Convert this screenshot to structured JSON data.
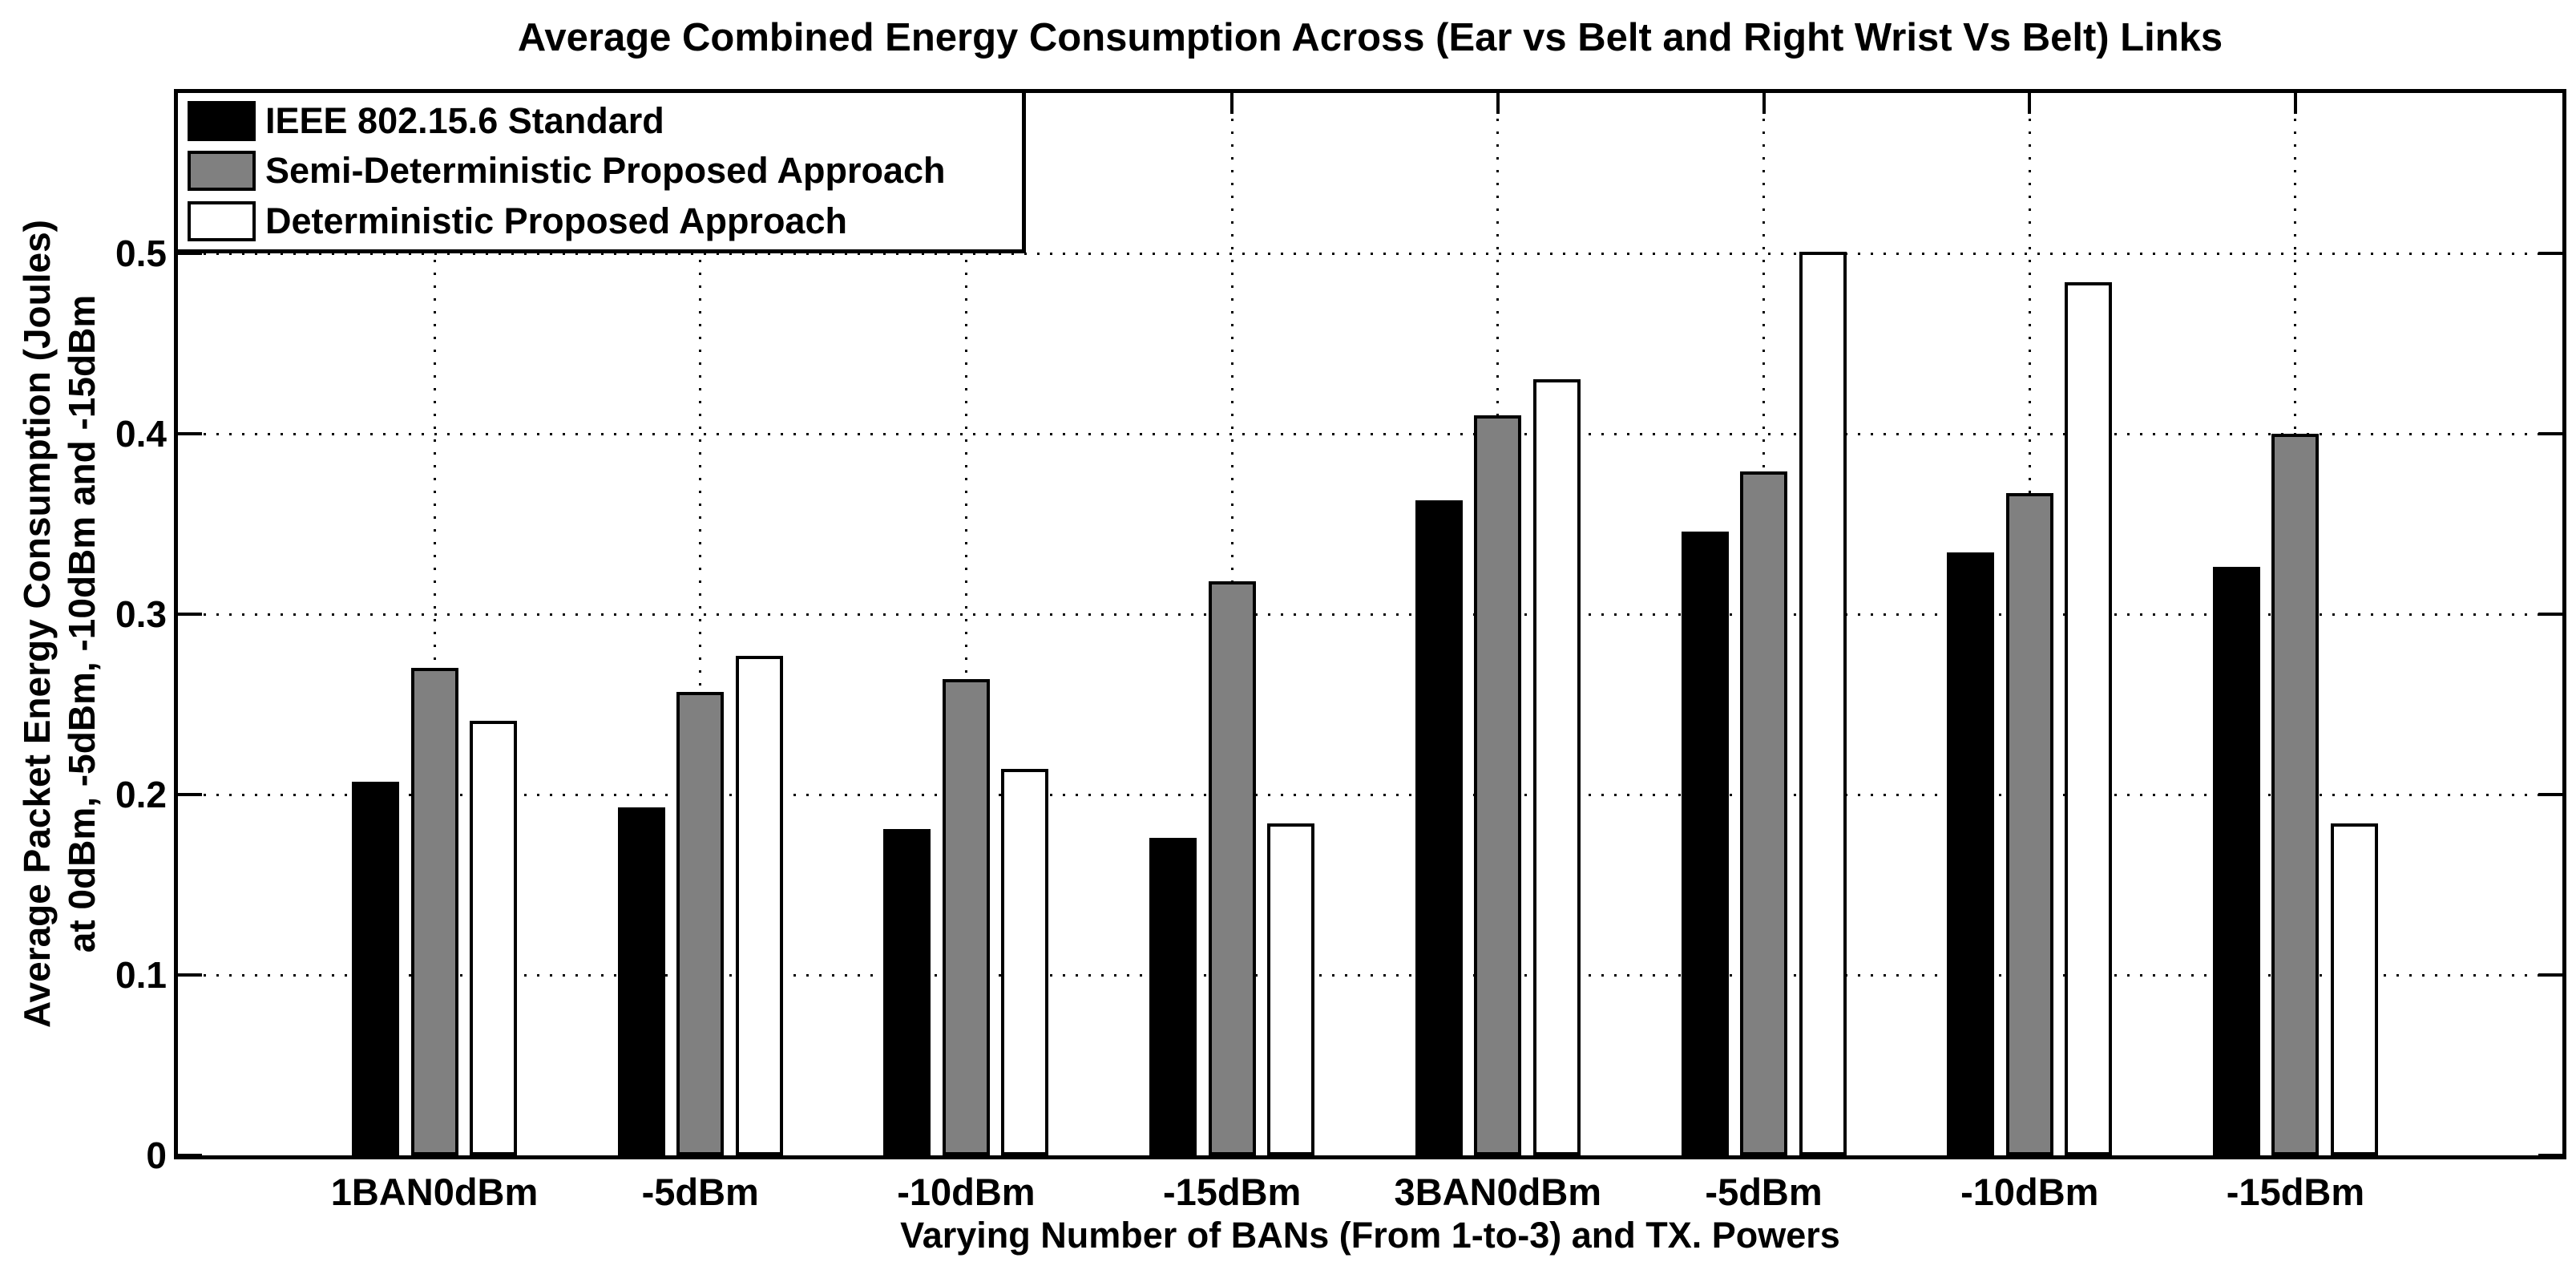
{
  "chart_data": {
    "type": "bar",
    "title": "Average Combined Energy Consumption Across (Ear vs Belt and Right Wrist Vs Belt) Links",
    "xlabel": "Varying Number of BANs (From 1-to-3) and TX. Powers",
    "ylabel": "Average Packet Energy Consumption (Joules) at 0dBm, -5dBm, -10dBm and -15dBm",
    "ylabel_lines": [
      "Average Packet Energy Consumption (Joules)",
      "at 0dBm, -5dBm, -10dBm and -15dBm"
    ],
    "categories": [
      "1BAN0dBm",
      "-5dBm",
      "-10dBm",
      "-15dBm",
      "3BAN0dBm",
      "-5dBm",
      "-10dBm",
      "-15dBm"
    ],
    "series": [
      {
        "name": "IEEE 802.15.6 Standard",
        "color": "#000000",
        "values": [
          0.207,
          0.193,
          0.181,
          0.176,
          0.363,
          0.346,
          0.334,
          0.326
        ]
      },
      {
        "name": "Semi-Deterministic Proposed Approach",
        "color": "#808080",
        "values": [
          0.27,
          0.257,
          0.264,
          0.318,
          0.41,
          0.379,
          0.367,
          0.4
        ]
      },
      {
        "name": "Deterministic Proposed Approach",
        "color": "#ffffff",
        "values": [
          0.241,
          0.277,
          0.214,
          0.184,
          0.43,
          0.501,
          0.484,
          0.184
        ]
      }
    ],
    "yticks": [
      0,
      0.1,
      0.2,
      0.3,
      0.4,
      0.5
    ],
    "ylim": [
      0,
      0.59
    ],
    "grid": true,
    "grid_style": "dotted",
    "legend_position": "northwest",
    "colors": {
      "background": "#ffffff",
      "axis": "#000000",
      "bar_edge": "#000000"
    }
  }
}
